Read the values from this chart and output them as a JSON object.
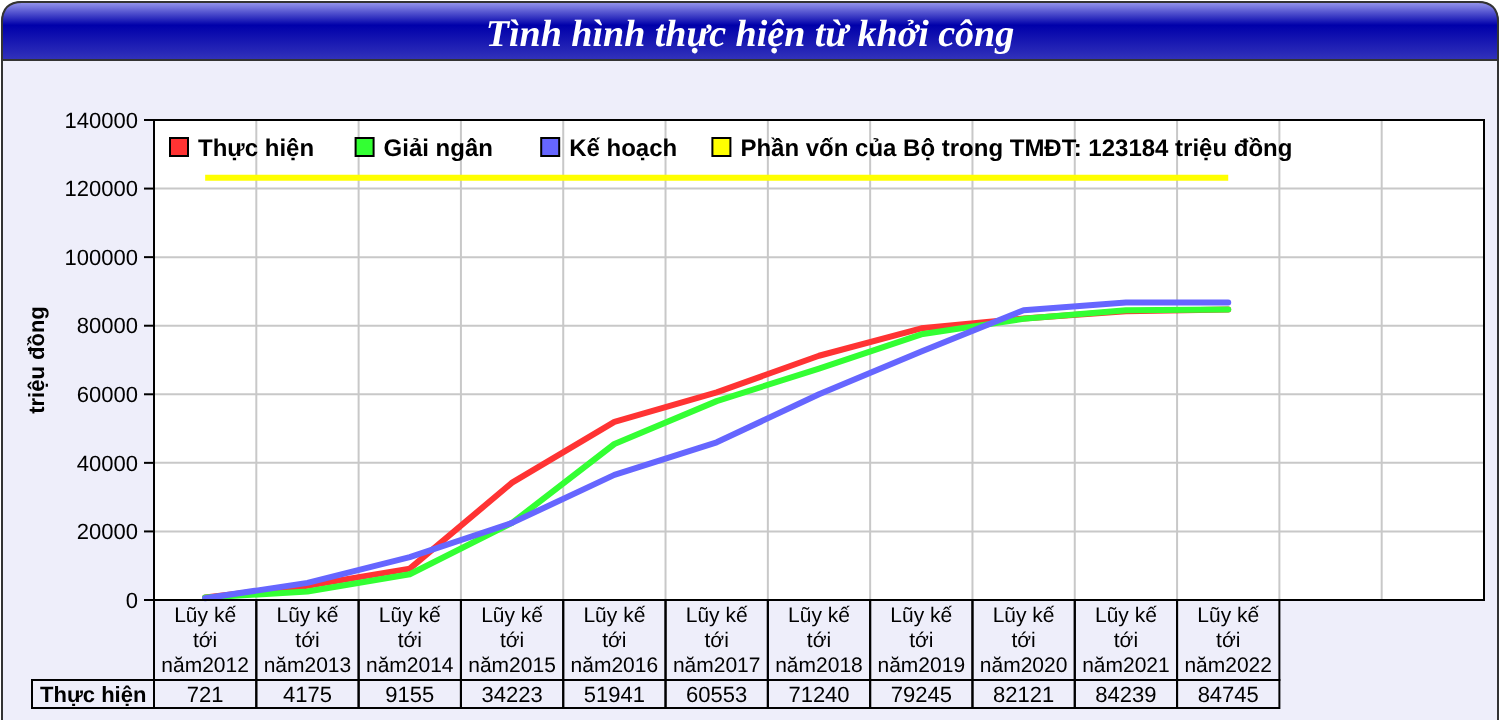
{
  "chart_data": {
    "type": "line",
    "title": "Tình hình thực hiện từ khởi công",
    "ylabel": "triệu đồng",
    "categories": [
      "Lũy kế tới năm2012",
      "Lũy kế tới năm2013",
      "Lũy kế tới năm2014",
      "Lũy kế tới năm2015",
      "Lũy kế tới năm2016",
      "Lũy kế tới năm2017",
      "Lũy kế tới năm2018",
      "Lũy kế tới năm2019",
      "Lũy kế tới năm2020",
      "Lũy kế tới năm2021",
      "Lũy kế tới năm2022",
      null,
      null
    ],
    "series": [
      {
        "name": "Thực hiện",
        "color": "#ff3333",
        "values": [
          721,
          4175,
          9155,
          34223,
          51941,
          60553,
          71240,
          79245,
          82121,
          84239,
          84745,
          null,
          null
        ],
        "value_labels": [
          "721",
          "4175",
          "9155",
          "34223",
          "51941",
          "60553",
          "71240",
          "79245",
          "82121",
          "84239",
          "84745",
          null,
          null
        ]
      },
      {
        "name": "Giải ngân",
        "color": "#33ff33",
        "values": [
          700,
          2500,
          7500,
          22500,
          45500,
          58000,
          67500,
          77500,
          82000,
          84500,
          84700,
          null,
          null
        ]
      },
      {
        "name": "Kế hoạch",
        "color": "#6666ff",
        "values": [
          500,
          5000,
          12500,
          22500,
          36500,
          46000,
          60000,
          72500,
          84500,
          86800,
          86800,
          null,
          null
        ]
      }
    ],
    "ref_lines": [
      {
        "axis": "y",
        "value": 123184,
        "label": "Phần vốn của Bộ trong TMĐT: 123184 triệu đồng",
        "color": "#ffff00"
      }
    ],
    "ylim": [
      0,
      140000
    ],
    "yticks": [
      0,
      20000,
      40000,
      60000,
      80000,
      100000,
      120000,
      140000
    ],
    "grid": true,
    "legend": "top left",
    "marker": "none",
    "line_style": "solid"
  }
}
